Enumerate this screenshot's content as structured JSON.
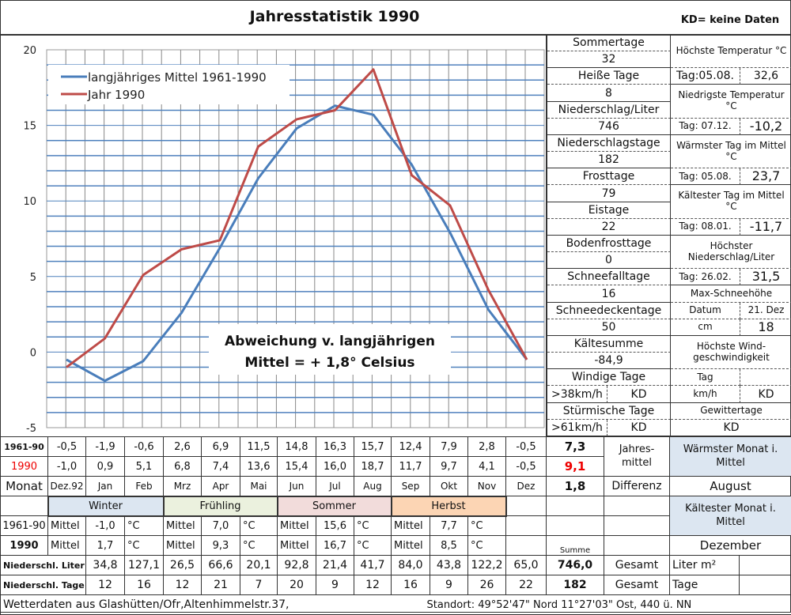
{
  "title": "Jahresstatistik 1990",
  "kd_note": "KD= keine Daten",
  "chart_data": {
    "type": "line",
    "title": "",
    "categories": [
      "Dez.92",
      "Jan",
      "Feb",
      "Mrz",
      "Apr",
      "Mai",
      "Jun",
      "Jul",
      "Aug",
      "Sep",
      "Okt",
      "Nov",
      "Dez"
    ],
    "series": [
      {
        "name": "langjähriges Mittel 1961-1990",
        "color": "#4a7ebb",
        "values": [
          -0.5,
          -1.9,
          -0.6,
          2.6,
          6.9,
          11.5,
          14.8,
          16.3,
          15.7,
          12.4,
          7.9,
          2.8,
          -0.5
        ]
      },
      {
        "name": "Jahr 1990",
        "color": "#be4b48",
        "values": [
          -1.0,
          0.9,
          5.1,
          6.8,
          7.4,
          13.6,
          15.4,
          16.0,
          18.7,
          11.7,
          9.7,
          4.1,
          -0.5
        ]
      }
    ],
    "ylim": [
      -5,
      20
    ],
    "yticks": [
      "-5",
      "0",
      "5",
      "10",
      "15",
      "20"
    ],
    "grid": true,
    "grid_color": "#4f81bd",
    "legend": "top-left",
    "annotation": [
      "Abweichung v. langjährigen",
      "Mittel = + 1,8° Celsius"
    ]
  },
  "stats": {
    "sommertage": {
      "label": "Sommertage",
      "value": "32"
    },
    "heisse": {
      "label": "Heiße Tage",
      "value": "8"
    },
    "niederschlag": {
      "label": "Niederschlag/Liter",
      "value": "746"
    },
    "nstage": {
      "label": "Niederschlagstage",
      "value": "182"
    },
    "frost": {
      "label": "Frosttage",
      "value": "79"
    },
    "eis": {
      "label": "Eistage",
      "value": "22"
    },
    "bodenfrost": {
      "label": "Bodenfrosttage",
      "value": "0"
    },
    "schneefall": {
      "label": "Schneefalltage",
      "value": "16"
    },
    "schneedecke": {
      "label": "Schneedeckentage",
      "value": "50"
    },
    "kaelte": {
      "label": "Kältesumme",
      "value": "-84,9"
    },
    "windig": {
      "label": "Windige Tage",
      "unit": ">38km/h",
      "value": "KD"
    },
    "sturm": {
      "label": "Stürmische Tage",
      "unit": ">61km/h",
      "value": "KD"
    }
  },
  "records": {
    "tmax": {
      "label": "Höchste Temperatur °C",
      "day": "Tag:05.08.",
      "value": "32,6"
    },
    "tmin": {
      "label": "Niedrigste Temperatur °C",
      "day": "Tag: 07.12.",
      "value": "-10,2"
    },
    "warm": {
      "label": "Wärmster Tag im Mittel °C",
      "day": "Tag: 05.08.",
      "value": "23,7"
    },
    "kalt": {
      "label": "Kältester Tag im Mittel °C",
      "day": "Tag: 08.01.",
      "value": "-11,7"
    },
    "nmax": {
      "label": "Höchster Niederschlag/Liter",
      "day": "Tag: 26.02.",
      "value": "31,5"
    },
    "schnee": {
      "label": "Max-Schneehöhe",
      "date_label": "Datum",
      "date": "21. Dez",
      "unit": "cm",
      "value": "18"
    },
    "wind": {
      "label": "Höchste Wind-geschwindigkeit",
      "day_label": "Tag",
      "day": "",
      "unit": "km/h",
      "value": "KD"
    },
    "gewitter": {
      "label": "Gewittertage",
      "value": "KD"
    }
  },
  "table": {
    "row_mittel_label": "1961-90",
    "row_1990_label": "1990",
    "row_month_label": "Monat",
    "mittel": [
      "-0,5",
      "-1,9",
      "-0,6",
      "2,6",
      "6,9",
      "11,5",
      "14,8",
      "16,3",
      "15,7",
      "12,4",
      "7,9",
      "2,8",
      "-0,5"
    ],
    "y1990": [
      "-1,0",
      "0,9",
      "5,1",
      "6,8",
      "7,4",
      "13,6",
      "15,4",
      "16,0",
      "18,7",
      "11,7",
      "9,7",
      "4,1",
      "-0,5"
    ],
    "months": [
      "Dez.92",
      "Jan",
      "Feb",
      "Mrz",
      "Apr",
      "Mai",
      "Jun",
      "Jul",
      "Aug",
      "Sep",
      "Okt",
      "Nov",
      "Dez"
    ],
    "jm_mittel": "7,3",
    "jm_1990": "9,1",
    "diff": "1,8",
    "jahresmittel_label": "Jahres-mittel",
    "differenz_label": "Differenz",
    "warmest_label": "Wärmster Monat i. Mittel",
    "warmest": "August",
    "coldest_label": "Kältester Monat i. Mittel",
    "coldest": "Dezember",
    "seasons": [
      {
        "name": "Winter",
        "mittel": "-1,0",
        "y1990": "1,7"
      },
      {
        "name": "Frühling",
        "mittel": "7,0",
        "y1990": "9,3"
      },
      {
        "name": "Sommer",
        "mittel": "15,6",
        "y1990": "16,7"
      },
      {
        "name": "Herbst",
        "mittel": "7,7",
        "y1990": "8,5"
      }
    ],
    "mittel_word": "Mittel",
    "unit_c": "°C",
    "summe_label": "Summe",
    "rain_label": "Niederschl. Liter",
    "rain": [
      "34,8",
      "127,1",
      "26,5",
      "66,6",
      "20,1",
      "92,8",
      "21,4",
      "41,7",
      "84,0",
      "43,8",
      "122,2",
      "65,0"
    ],
    "rain_total": "746,0",
    "days_label": "Niederschl. Tage",
    "days": [
      "12",
      "16",
      "12",
      "21",
      "7",
      "20",
      "9",
      "12",
      "16",
      "9",
      "26",
      "22"
    ],
    "days_total": "182",
    "gesamt": "Gesamt",
    "liter_unit": "Liter m²",
    "tage_unit": "Tage"
  },
  "footer": {
    "left": "Wetterdaten aus Glashütten/Ofr,Altenhimmelstr.37,",
    "right": "Standort:  49°52'47\" Nord    11°27'03\" Ost, 440 ü. NN"
  }
}
